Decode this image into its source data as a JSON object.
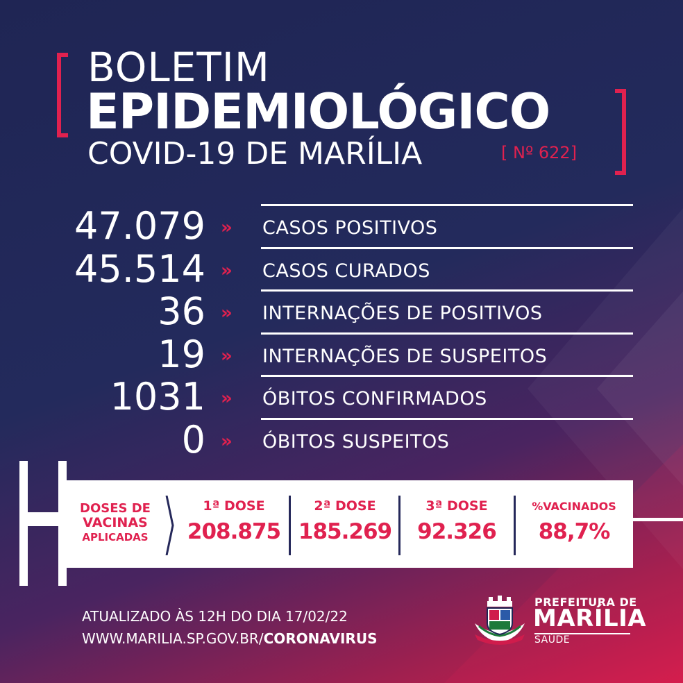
{
  "header": {
    "line1": "BOLETIM",
    "line2": "EPIDEMIOLÓGICO",
    "line3": "COVID-19 DE MARÍLIA",
    "issue": "[ Nº 622]"
  },
  "stats": [
    {
      "value": "47.079",
      "arrow": "»",
      "label": "CASOS POSITIVOS"
    },
    {
      "value": "45.514",
      "arrow": "»",
      "label": "CASOS CURADOS"
    },
    {
      "value": "36",
      "arrow": "»",
      "label": "INTERNAÇÕES DE POSITIVOS"
    },
    {
      "value": "19",
      "arrow": "»",
      "label": "INTERNAÇÕES DE SUSPEITOS"
    },
    {
      "value": "1031",
      "arrow": "»",
      "label": "ÓBITOS CONFIRMADOS"
    },
    {
      "value": "0",
      "arrow": "»",
      "label": "ÓBITOS SUSPEITOS"
    }
  ],
  "vaccines": {
    "title_lines": [
      "DOSES DE",
      "VACINAS",
      "APLICADAS"
    ],
    "columns": [
      {
        "header": "1ª DOSE",
        "value": "208.875"
      },
      {
        "header": "2ª DOSE",
        "value": "185.269"
      },
      {
        "header": "3ª DOSE",
        "value": "92.326"
      },
      {
        "header": "%VACINADOS",
        "value": "88,7%"
      }
    ]
  },
  "footer": {
    "updated": "ATUALIZADO ÀS 12H DO DIA 17/02/22",
    "url_prefix": "WWW.MARILIA.SP.GOV.BR/",
    "url_bold": "CORONAVIRUS"
  },
  "brand": {
    "line1": "PREFEITURA DE",
    "line2": "MARÍLIA",
    "line3": "SAÚDE",
    "logo_icon": "coat-of-arms-icon"
  },
  "colors": {
    "background_dark": "#1f2554",
    "accent": "#e0214f",
    "text": "#ffffff"
  }
}
